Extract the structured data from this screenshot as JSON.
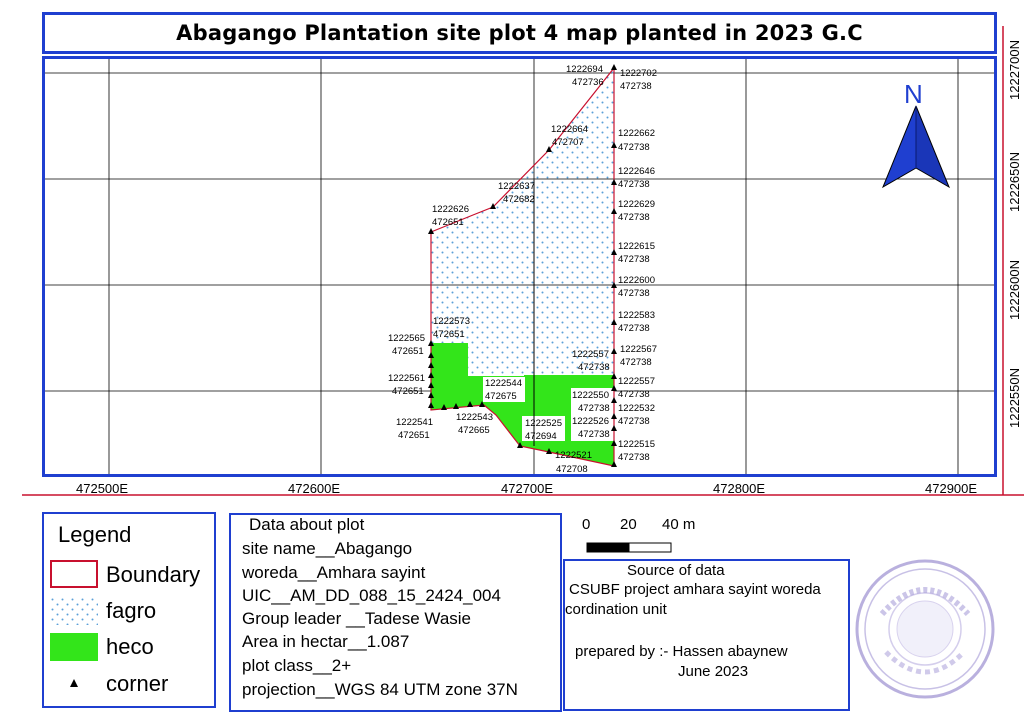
{
  "title": "Abagango Plantation site plot 4 map planted in 2023 G.C",
  "north_arrow": {
    "label": "N",
    "icon": "north-arrow-icon"
  },
  "x_axis_ticks": [
    "472500E",
    "472600E",
    "472700E",
    "472800E",
    "472900E"
  ],
  "y_axis_ticks": [
    "1222700N",
    "1222650N",
    "1222600N",
    "1222550N"
  ],
  "corner_labels": [
    {
      "n": "1222694",
      "e": "472736"
    },
    {
      "n": "1222702",
      "e": "472738"
    },
    {
      "n": "1222664",
      "e": "472707"
    },
    {
      "n": "1222662",
      "e": "472738"
    },
    {
      "n": "1222646",
      "e": "472738"
    },
    {
      "n": "1222637",
      "e": "472682"
    },
    {
      "n": "1222629",
      "e": "472738"
    },
    {
      "n": "1222626",
      "e": "472651"
    },
    {
      "n": "1222615",
      "e": "472738"
    },
    {
      "n": "1222600",
      "e": "472738"
    },
    {
      "n": "1222583",
      "e": "472738"
    },
    {
      "n": "1222573",
      "e": "472651"
    },
    {
      "n": "1222567",
      "e": "472738"
    },
    {
      "n": "1222565",
      "e": "472651"
    },
    {
      "n": "1222557",
      "e": "472738"
    },
    {
      "n": "1222557",
      "e": ""
    },
    {
      "n": "1222561",
      "e": "472651"
    },
    {
      "n": "1222544",
      "e": "472675"
    },
    {
      "n": "1222550",
      "e": "472738"
    },
    {
      "n": "",
      "e": "472738"
    },
    {
      "n": "1222532",
      "e": "472738"
    },
    {
      "n": "1222541",
      "e": "472651"
    },
    {
      "n": "1222543",
      "e": "472665"
    },
    {
      "n": "1222525",
      "e": "472694"
    },
    {
      "n": "1222526",
      "e": "472738"
    },
    {
      "n": "1222515",
      "e": "472738"
    },
    {
      "n": "1222521",
      "e": "472708"
    },
    {
      "n": "",
      "e": "472738"
    }
  ],
  "legend": {
    "title": "Legend",
    "items": [
      {
        "label": "Boundary",
        "color": "#c8102e"
      },
      {
        "label": "fagro",
        "color": "#5aa0d8"
      },
      {
        "label": "heco",
        "color": "#33e51a"
      },
      {
        "label": "corner",
        "color": "#000000"
      }
    ]
  },
  "plot_info": {
    "heading": "Data about plot",
    "lines": [
      "site name__Abagango",
      "woreda__Amhara sayint",
      "UIC__AM_DD_088_15_2424_004",
      "Group leader __Tadese Wasie",
      "Area in hectar__1.087",
      "plot class__2+",
      "projection__WGS 84 UTM zone 37N"
    ]
  },
  "scale_bar": {
    "labels": [
      "0",
      "20",
      "40 m"
    ]
  },
  "source": {
    "heading": "Source of data",
    "line1": "CSUBF project amhara sayint woreda",
    "line2": "cordination unit",
    "prepared": "prepared by :- Hassen abaynew",
    "date": "June 2023"
  },
  "colors": {
    "frame": "#1f3fd0",
    "boundary": "#c8102e",
    "heco": "#33e51a",
    "fagro_dot": "#5aa0d8",
    "north": "#1f3fd0"
  }
}
